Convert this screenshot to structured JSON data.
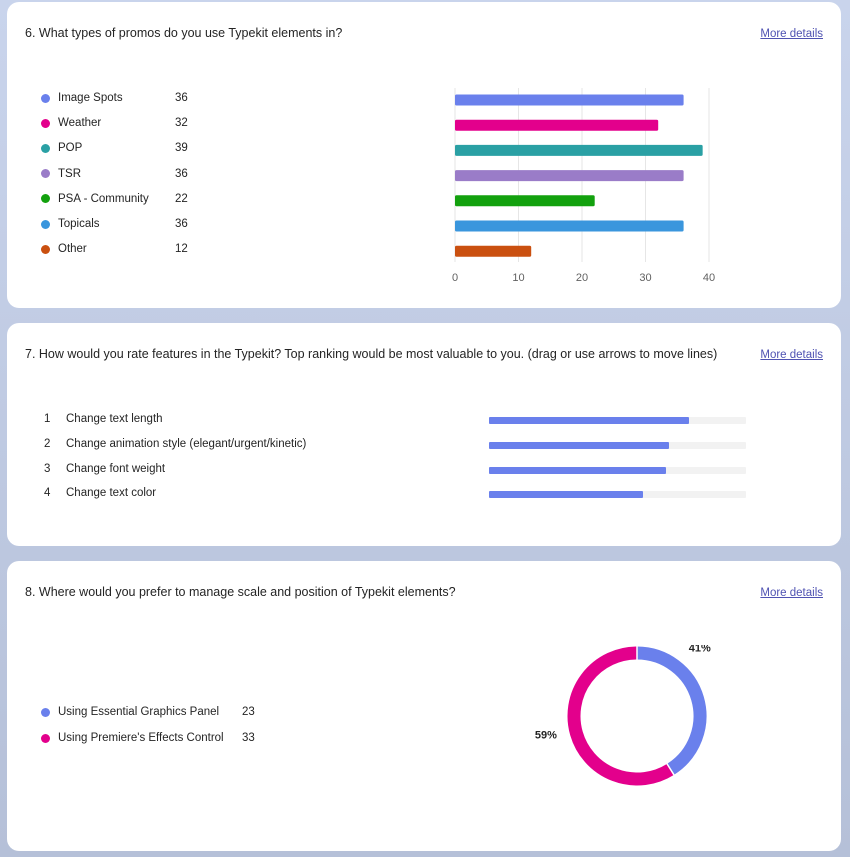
{
  "q6": {
    "title": "6. What types of promos do you use Typekit elements in?",
    "more": "More details"
  },
  "q7": {
    "title": "7. How would you rate features in the Typekit? Top ranking would be most valuable to you. (drag or use arrows to move lines)",
    "more": "More details"
  },
  "q8": {
    "title": "8. Where would you prefer to manage scale and position of Typekit elements?",
    "more": "More details"
  },
  "chart_data": [
    {
      "type": "bar",
      "orientation": "horizontal",
      "categories": [
        "Image Spots",
        "Weather",
        "POP",
        "TSR",
        "PSA - Community",
        "Topicals",
        "Other"
      ],
      "values": [
        36,
        32,
        39,
        36,
        22,
        36,
        12
      ],
      "colors": [
        "#6a80ec",
        "#e3008c",
        "#2aa0a4",
        "#9a7cc8",
        "#13a10e",
        "#3a96dd",
        "#ca5010"
      ],
      "xlim": [
        0,
        40
      ],
      "xticks": [
        "0",
        "10",
        "20",
        "30",
        "40"
      ],
      "grid": true,
      "legend": "left"
    },
    {
      "type": "bar",
      "orientation": "horizontal",
      "ranks": [
        "1",
        "2",
        "3",
        "4"
      ],
      "categories": [
        "Change text length",
        "Change animation style (elegant/urgent/kinetic)",
        "Change font weight",
        "Change text color"
      ],
      "values": [
        0.78,
        0.7,
        0.69,
        0.6
      ],
      "color": "#6a80ec"
    },
    {
      "type": "pie",
      "style": "donut",
      "categories": [
        "Using Essential Graphics Panel",
        "Using Premiere's Effects Control"
      ],
      "values": [
        23,
        33
      ],
      "percent_labels": [
        "41%",
        "59%"
      ],
      "colors": [
        "#6a80ec",
        "#e3008c"
      ],
      "legend": "left"
    }
  ]
}
